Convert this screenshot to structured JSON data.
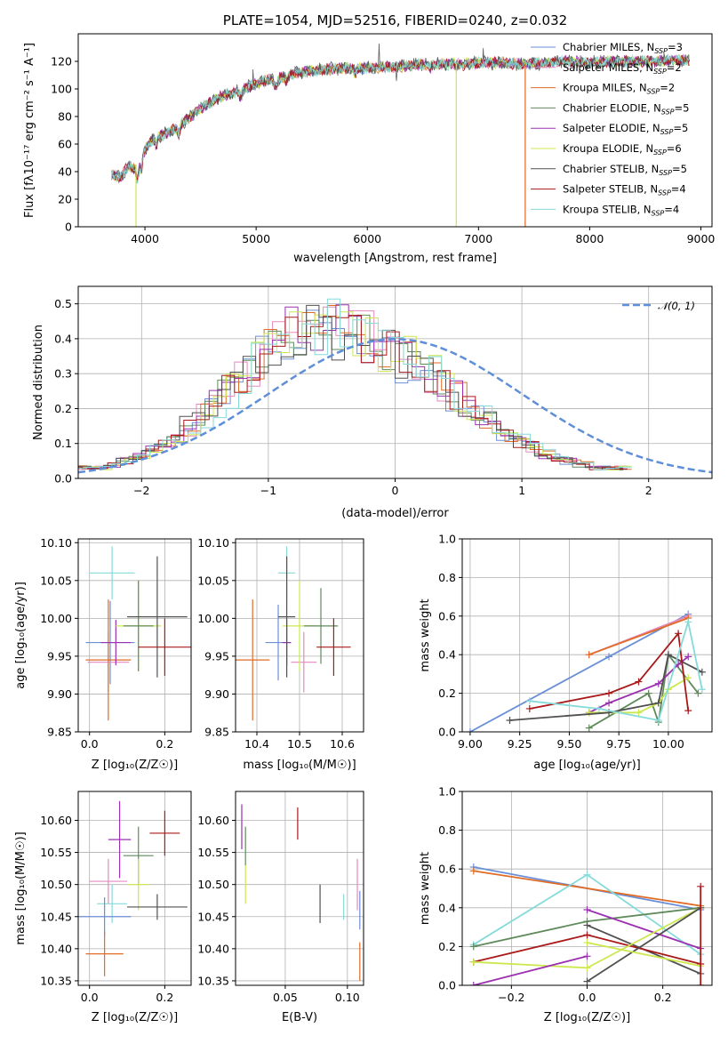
{
  "colors": {
    "chabrier_miles": "#6a8fd8",
    "salpeter_miles": "#e688bf",
    "kroupa_miles": "#e06c25",
    "chabrier_elodie": "#5f8a5a",
    "salpeter_elodie": "#9b30b0",
    "kroupa_elodie": "#cbe84d",
    "chabrier_stelib": "#505050",
    "salpeter_stelib": "#aa1919",
    "kroupa_stelib": "#86dada",
    "normal": "#5f8fd8"
  },
  "chart_data": [
    {
      "id": "spectrum",
      "type": "line",
      "title": "PLATE=1054, MJD=52516, FIBERID=0240, z=0.032",
      "xlabel": "wavelength [Angstrom, rest frame]",
      "ylabel": "Flux [fλ10⁻¹⁷ erg cm⁻² s⁻¹ A⁻¹]",
      "xlim": [
        3400,
        9100
      ],
      "ylim": [
        0,
        140
      ],
      "xticks": [
        "4000",
        "5000",
        "6000",
        "7000",
        "8000",
        "9000"
      ],
      "yticks": [
        "0",
        "20",
        "40",
        "60",
        "80",
        "100",
        "120"
      ],
      "legend_position": "right",
      "continuum": [
        [
          3700,
          38
        ],
        [
          3780,
          36
        ],
        [
          3850,
          44
        ],
        [
          3900,
          42
        ],
        [
          3950,
          50
        ],
        [
          4050,
          62
        ],
        [
          4150,
          66
        ],
        [
          4250,
          70
        ],
        [
          4350,
          76
        ],
        [
          4500,
          86
        ],
        [
          4700,
          95
        ],
        [
          4900,
          100
        ],
        [
          5000,
          104
        ],
        [
          5200,
          108
        ],
        [
          5400,
          112
        ],
        [
          5600,
          114
        ],
        [
          5800,
          115
        ],
        [
          6000,
          115
        ],
        [
          6200,
          116
        ],
        [
          6400,
          117
        ],
        [
          6600,
          118
        ],
        [
          6800,
          118
        ],
        [
          7000,
          119
        ],
        [
          7200,
          119
        ],
        [
          7400,
          118
        ],
        [
          7600,
          119
        ],
        [
          7800,
          120
        ],
        [
          8000,
          119
        ],
        [
          8200,
          120
        ],
        [
          8400,
          120
        ],
        [
          8600,
          120
        ],
        [
          8800,
          121
        ]
      ],
      "dropouts": [
        {
          "series": "Kroupa ELODIE",
          "x": 3920,
          "to": 0
        },
        {
          "series": "Kroupa ELODIE",
          "x": 6800,
          "to": 0
        },
        {
          "series": "Kroupa MILES",
          "x": 7420,
          "to": 0
        }
      ],
      "legend": [
        {
          "base": "Chabrier MILES, N",
          "sub": "SSP",
          "tail": "=3",
          "key": "chabrier_miles"
        },
        {
          "base": "Salpeter MILES, N",
          "sub": "SSP",
          "tail": "=2",
          "key": "salpeter_miles"
        },
        {
          "base": "Kroupa MILES, N",
          "sub": "SSP",
          "tail": "=2",
          "key": "kroupa_miles"
        },
        {
          "base": "Chabrier ELODIE, N",
          "sub": "SSP",
          "tail": "=5",
          "key": "chabrier_elodie"
        },
        {
          "base": "Salpeter ELODIE, N",
          "sub": "SSP",
          "tail": "=5",
          "key": "salpeter_elodie"
        },
        {
          "base": "Kroupa ELODIE, N",
          "sub": "SSP",
          "tail": "=6",
          "key": "kroupa_elodie"
        },
        {
          "base": "Chabrier STELIB, N",
          "sub": "SSP",
          "tail": "=5",
          "key": "chabrier_stelib"
        },
        {
          "base": "Salpeter STELIB, N",
          "sub": "SSP",
          "tail": "=4",
          "key": "salpeter_stelib"
        },
        {
          "base": "Kroupa STELIB, N",
          "sub": "SSP",
          "tail": "=4",
          "key": "kroupa_stelib"
        }
      ]
    },
    {
      "id": "residuals",
      "type": "bar",
      "xlabel": "(data-model)/error",
      "ylabel": "Normed distribution",
      "xlim": [
        -2.5,
        2.5
      ],
      "ylim": [
        0,
        0.55
      ],
      "xticks": [
        "−2",
        "−1",
        "0",
        "1",
        "2"
      ],
      "yticks": [
        "0.0",
        "0.1",
        "0.2",
        "0.3",
        "0.4",
        "0.5"
      ],
      "grid": true,
      "legend_label": "𝒩(0, 1)",
      "legend_position": "top-right",
      "bin_width": 0.1,
      "histogram": [
        0.03,
        0.03,
        0.04,
        0.05,
        0.06,
        0.08,
        0.1,
        0.12,
        0.15,
        0.18,
        0.21,
        0.25,
        0.29,
        0.33,
        0.36,
        0.38,
        0.41,
        0.42,
        0.44,
        0.43,
        0.42,
        0.41,
        0.4,
        0.38,
        0.36,
        0.34,
        0.32,
        0.3,
        0.27,
        0.24,
        0.21,
        0.18,
        0.16,
        0.13,
        0.11,
        0.09,
        0.07,
        0.06,
        0.05,
        0.04,
        0.03,
        0.03
      ]
    },
    {
      "id": "age-vs-Z",
      "type": "scatter",
      "xlabel": "Z [log₁₀(Z/Z☉)]",
      "ylabel": "age  [log₁₀(age/yr)]",
      "xlim": [
        -0.03,
        0.27
      ],
      "ylim": [
        9.85,
        10.105
      ],
      "xticks": [
        "0.0",
        "0.2"
      ],
      "yticks": [
        "9.85",
        "9.90",
        "9.95",
        "10.00",
        "10.05",
        "10.10"
      ],
      "points": [
        {
          "key": "kroupa_stelib",
          "x": 0.06,
          "y": 10.06,
          "xe": 0.06,
          "ye": 0.035
        },
        {
          "key": "chabrier_miles",
          "x": 0.055,
          "y": 9.968,
          "xe": 0.065,
          "ye": 0.055
        },
        {
          "key": "salpeter_miles",
          "x": 0.05,
          "y": 9.942,
          "xe": 0.055,
          "ye": 0.04
        },
        {
          "key": "kroupa_miles",
          "x": 0.05,
          "y": 9.945,
          "xe": 0.06,
          "ye": 0.08
        },
        {
          "key": "salpeter_elodie",
          "x": 0.07,
          "y": 9.968,
          "xe": 0.04,
          "ye": 0.03
        },
        {
          "key": "kroupa_elodie",
          "x": 0.13,
          "y": 9.99,
          "xe": 0.06,
          "ye": 0.06
        },
        {
          "key": "chabrier_elodie",
          "x": 0.13,
          "y": 9.99,
          "xe": 0.04,
          "ye": 0.06
        },
        {
          "key": "chabrier_stelib",
          "x": 0.18,
          "y": 10.002,
          "xe": 0.08,
          "ye": 0.08
        },
        {
          "key": "salpeter_stelib",
          "x": 0.2,
          "y": 9.962,
          "xe": 0.07,
          "ye": 0.038
        }
      ]
    },
    {
      "id": "age-vs-mass",
      "type": "scatter",
      "xlabel": "mass [log₁₀(M/M☉)]",
      "xlim": [
        10.35,
        10.65
      ],
      "ylim": [
        9.85,
        10.105
      ],
      "xticks": [
        "10.4",
        "10.5",
        "10.6"
      ],
      "yticks": [
        "9.85",
        "9.90",
        "9.95",
        "10.00",
        "10.05",
        "10.10"
      ],
      "points": [
        {
          "key": "kroupa_stelib",
          "x": 10.47,
          "y": 10.06,
          "xe": 0.02,
          "ye": 0.035
        },
        {
          "key": "chabrier_miles",
          "x": 10.45,
          "y": 9.968,
          "xe": 0.03,
          "ye": 0.05
        },
        {
          "key": "salpeter_miles",
          "x": 10.51,
          "y": 9.942,
          "xe": 0.03,
          "ye": 0.04
        },
        {
          "key": "kroupa_miles",
          "x": 10.39,
          "y": 9.945,
          "xe": 0.04,
          "ye": 0.08
        },
        {
          "key": "salpeter_elodie",
          "x": 10.47,
          "y": 9.968,
          "xe": 0.01,
          "ye": 0.03
        },
        {
          "key": "kroupa_elodie",
          "x": 10.5,
          "y": 9.99,
          "xe": 0.04,
          "ye": 0.06
        },
        {
          "key": "chabrier_elodie",
          "x": 10.55,
          "y": 9.99,
          "xe": 0.04,
          "ye": 0.05
        },
        {
          "key": "chabrier_stelib",
          "x": 10.47,
          "y": 10.002,
          "xe": 0.02,
          "ye": 0.08
        },
        {
          "key": "salpeter_stelib",
          "x": 10.58,
          "y": 9.962,
          "xe": 0.04,
          "ye": 0.038
        }
      ]
    },
    {
      "id": "weight-vs-age",
      "type": "line",
      "xlabel": "age  [log₁₀(age/yr)]",
      "ylabel": "mass weight",
      "xlim": [
        8.96,
        10.22
      ],
      "ylim": [
        0,
        1
      ],
      "xticks": [
        "9.00",
        "9.25",
        "9.50",
        "9.75",
        "10.00"
      ],
      "yticks": [
        "0.0",
        "0.2",
        "0.4",
        "0.6",
        "0.8",
        "1.0"
      ],
      "series": [
        {
          "key": "chabrier_miles",
          "x": [
            9.0,
            9.7,
            10.1
          ],
          "y": [
            0.0,
            0.39,
            0.61
          ]
        },
        {
          "key": "salpeter_miles",
          "x": [
            9.6,
            10.1
          ],
          "y": [
            0.4,
            0.6
          ]
        },
        {
          "key": "kroupa_miles",
          "x": [
            9.6,
            10.1
          ],
          "y": [
            0.4,
            0.59
          ]
        },
        {
          "key": "chabrier_elodie",
          "x": [
            9.6,
            9.9,
            9.95,
            10.0,
            10.15
          ],
          "y": [
            0.02,
            0.2,
            0.05,
            0.4,
            0.2
          ]
        },
        {
          "key": "salpeter_elodie",
          "x": [
            9.6,
            9.7,
            9.95,
            10.05,
            10.1
          ],
          "y": [
            0.1,
            0.15,
            0.25,
            0.35,
            0.39
          ]
        },
        {
          "key": "kroupa_elodie",
          "x": [
            9.6,
            9.85,
            9.95,
            10.0,
            10.1
          ],
          "y": [
            0.1,
            0.1,
            0.15,
            0.22,
            0.28
          ]
        },
        {
          "key": "chabrier_stelib",
          "x": [
            9.2,
            9.7,
            9.95,
            10.0,
            10.17
          ],
          "y": [
            0.06,
            0.1,
            0.15,
            0.4,
            0.31
          ]
        },
        {
          "key": "salpeter_stelib",
          "x": [
            9.3,
            9.7,
            9.85,
            10.05,
            10.1
          ],
          "y": [
            0.12,
            0.2,
            0.26,
            0.51,
            0.11
          ]
        },
        {
          "key": "kroupa_stelib",
          "x": [
            9.3,
            9.65,
            9.95,
            10.1,
            10.17
          ],
          "y": [
            0.16,
            0.12,
            0.06,
            0.57,
            0.22
          ]
        }
      ]
    },
    {
      "id": "mass-vs-Z",
      "type": "scatter",
      "xlabel": "Z [log₁₀(Z/Z☉)]",
      "ylabel": "mass [log₁₀(M/M☉)]",
      "xlim": [
        -0.03,
        0.27
      ],
      "ylim": [
        10.343,
        10.645
      ],
      "xticks": [
        "0.0",
        "0.2"
      ],
      "yticks": [
        "10.35",
        "10.40",
        "10.45",
        "10.50",
        "10.55",
        "10.60"
      ],
      "points": [
        {
          "key": "salpeter_elodie",
          "x": 0.08,
          "y": 10.57,
          "xe": 0.03,
          "ye": 0.06
        },
        {
          "key": "salpeter_stelib",
          "x": 0.2,
          "y": 10.58,
          "xe": 0.04,
          "ye": 0.035
        },
        {
          "key": "chabrier_elodie",
          "x": 0.13,
          "y": 10.545,
          "xe": 0.04,
          "ye": 0.045
        },
        {
          "key": "kroupa_elodie",
          "x": 0.13,
          "y": 10.5,
          "xe": 0.03,
          "ye": 0.04
        },
        {
          "key": "salpeter_miles",
          "x": 0.05,
          "y": 10.505,
          "xe": 0.05,
          "ye": 0.035
        },
        {
          "key": "kroupa_stelib",
          "x": 0.06,
          "y": 10.47,
          "xe": 0.04,
          "ye": 0.03
        },
        {
          "key": "chabrier_stelib",
          "x": 0.18,
          "y": 10.465,
          "xe": 0.08,
          "ye": 0.02
        },
        {
          "key": "chabrier_miles",
          "x": 0.04,
          "y": 10.45,
          "xe": 0.07,
          "ye": 0.03
        },
        {
          "key": "kroupa_miles",
          "x": 0.04,
          "y": 10.392,
          "xe": 0.05,
          "ye": 0.035
        }
      ]
    },
    {
      "id": "mass-vs-EBV",
      "type": "scatter",
      "xlabel": "E(B-V)",
      "xlim": [
        0.01,
        0.113
      ],
      "ylim": [
        10.343,
        10.645
      ],
      "xticks": [
        "0.05",
        "0.10"
      ],
      "yticks": [
        "10.35",
        "10.40",
        "10.45",
        "10.50",
        "10.55",
        "10.60"
      ],
      "points": [
        {
          "key": "salpeter_elodie",
          "x": 0.015,
          "y": 10.59,
          "xe": 0,
          "ye": 0.035
        },
        {
          "key": "chabrier_elodie",
          "x": 0.018,
          "y": 10.56,
          "xe": 0,
          "ye": 0.03
        },
        {
          "key": "kroupa_elodie",
          "x": 0.018,
          "y": 10.5,
          "xe": 0,
          "ye": 0.03
        },
        {
          "key": "salpeter_stelib",
          "x": 0.06,
          "y": 10.595,
          "xe": 0,
          "ye": 0.025
        },
        {
          "key": "chabrier_stelib",
          "x": 0.078,
          "y": 10.47,
          "xe": 0,
          "ye": 0.03
        },
        {
          "key": "kroupa_stelib",
          "x": 0.097,
          "y": 10.465,
          "xe": 0,
          "ye": 0.02
        },
        {
          "key": "salpeter_miles",
          "x": 0.108,
          "y": 10.5,
          "xe": 0,
          "ye": 0.04
        },
        {
          "key": "chabrier_miles",
          "x": 0.11,
          "y": 10.46,
          "xe": 0,
          "ye": 0.03
        },
        {
          "key": "kroupa_miles",
          "x": 0.11,
          "y": 10.38,
          "xe": 0,
          "ye": 0.03
        }
      ]
    },
    {
      "id": "weight-vs-Z",
      "type": "line",
      "xlabel": "Z [log₁₀(Z/Z☉)]",
      "ylabel": "mass weight",
      "xlim": [
        -0.33,
        0.33
      ],
      "ylim": [
        0,
        1
      ],
      "xticks": [
        "−0.2",
        "0.0",
        "0.2"
      ],
      "yticks": [
        "0.0",
        "0.2",
        "0.4",
        "0.6",
        "0.8",
        "1.0"
      ],
      "series": [
        {
          "key": "chabrier_miles",
          "x": [
            -0.3,
            0.3
          ],
          "y": [
            0.61,
            0.39
          ]
        },
        {
          "key": "kroupa_miles",
          "x": [
            -0.3,
            0.3
          ],
          "y": [
            0.59,
            0.41
          ]
        },
        {
          "key": "kroupa_stelib",
          "x": [
            -0.3,
            0.0,
            0.3
          ],
          "y": [
            0.21,
            0.57,
            0.16
          ]
        },
        {
          "key": "chabrier_elodie",
          "x": [
            -0.3,
            0.0,
            0.3
          ],
          "y": [
            0.2,
            0.33,
            0.4
          ]
        },
        {
          "key": "salpeter_elodie",
          "x": [
            0.0,
            0.3
          ],
          "y": [
            0.39,
            0.19
          ]
        },
        {
          "key": "chabrier_stelib",
          "x": [
            0.0,
            0.3
          ],
          "y": [
            0.31,
            0.06
          ]
        },
        {
          "key": "salpeter_stelib",
          "x": [
            -0.3,
            0.0,
            0.3
          ],
          "y": [
            0.12,
            0.26,
            0.11
          ]
        },
        {
          "key": "kroupa_elodie",
          "x": [
            -0.3,
            0.0,
            0.3
          ],
          "y": [
            0.12,
            0.09,
            0.4
          ]
        },
        {
          "key": "salpeter_elodie",
          "x": [
            -0.3,
            0.0
          ],
          "y": [
            0.0,
            0.15
          ]
        },
        {
          "key": "chabrier_stelib",
          "x": [
            0.0,
            0.3
          ],
          "y": [
            0.02,
            0.4
          ]
        },
        {
          "key": "kroupa_elodie",
          "x": [
            0.0,
            0.3
          ],
          "y": [
            0.22,
            0.1
          ]
        },
        {
          "key": "salpeter_stelib",
          "x": [
            0.3,
            0.3
          ],
          "y": [
            0.51,
            0.0
          ]
        }
      ]
    }
  ]
}
